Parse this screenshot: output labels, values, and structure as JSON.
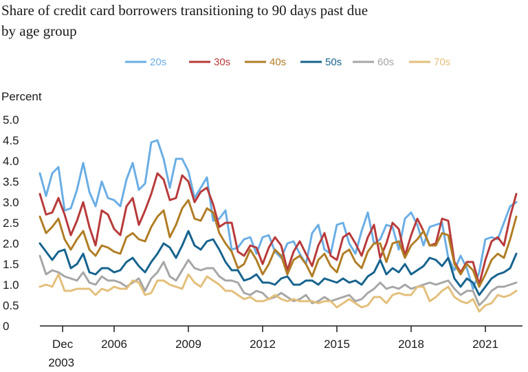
{
  "chart_data": {
    "type": "line",
    "title_line1": "Share of credit card borrowers transitioning to 90 days past due",
    "title_line2": "by age group",
    "ylabel": "Percent",
    "ylim": [
      0,
      5
    ],
    "yticks": [
      "0",
      "0.5",
      "1.0",
      "1.5",
      "2.0",
      "2.5",
      "3.0",
      "3.5",
      "4.0",
      "4.5",
      "5.0"
    ],
    "x_start": 2003.0,
    "x_end": 2022.5,
    "x_step": 0.25,
    "xticks": [
      {
        "x": 2003.92,
        "label": "Dec",
        "label2": "2003"
      },
      {
        "x": 2006.0,
        "label": "2006"
      },
      {
        "x": 2009.0,
        "label": "2009"
      },
      {
        "x": 2012.0,
        "label": "2012"
      },
      {
        "x": 2015.0,
        "label": "2015"
      },
      {
        "x": 2018.0,
        "label": "2018"
      },
      {
        "x": 2021.0,
        "label": "2021"
      }
    ],
    "series": [
      {
        "name": "20s",
        "color": "#6aaee5",
        "values": [
          3.7,
          3.15,
          3.7,
          3.85,
          2.8,
          2.85,
          3.3,
          3.95,
          3.25,
          2.9,
          3.5,
          3.1,
          3.05,
          2.9,
          3.55,
          3.95,
          3.3,
          3.45,
          4.45,
          4.5,
          4.05,
          3.35,
          4.05,
          4.05,
          3.75,
          3.1,
          3.35,
          3.6,
          2.55,
          2.6,
          2.8,
          1.85,
          1.9,
          2.1,
          2.15,
          1.75,
          2.15,
          2.2,
          1.8,
          1.65,
          2.0,
          2.05,
          1.75,
          1.5,
          2.25,
          2.45,
          1.85,
          1.75,
          2.45,
          2.5,
          2.0,
          1.75,
          2.3,
          2.75,
          2.0,
          2.1,
          2.45,
          2.4,
          1.85,
          2.6,
          2.75,
          2.45,
          1.95,
          2.4,
          2.45,
          2.5,
          1.65,
          1.35,
          1.7,
          1.4,
          0.9,
          1.3,
          2.1,
          2.15,
          2.1,
          2.5,
          2.9,
          3.0
        ]
      },
      {
        "name": "30s",
        "color": "#b83a3a",
        "values": [
          3.2,
          2.7,
          2.75,
          3.1,
          2.7,
          2.2,
          2.55,
          3.0,
          2.4,
          1.95,
          2.8,
          2.7,
          2.35,
          2.2,
          2.9,
          3.1,
          2.45,
          2.8,
          3.2,
          3.7,
          3.55,
          3.05,
          3.1,
          3.65,
          3.5,
          3.0,
          3.25,
          3.35,
          2.95,
          2.4,
          2.5,
          2.5,
          1.8,
          1.7,
          1.95,
          1.9,
          1.5,
          1.9,
          2.15,
          1.95,
          1.35,
          1.8,
          2.05,
          1.75,
          1.45,
          1.95,
          2.25,
          1.7,
          1.6,
          2.15,
          2.25,
          2.0,
          1.7,
          2.15,
          2.45,
          1.65,
          2.0,
          2.5,
          2.35,
          1.7,
          2.2,
          2.6,
          2.3,
          1.95,
          2.0,
          2.6,
          2.55,
          1.55,
          1.3,
          1.55,
          1.55,
          1.0,
          1.6,
          2.05,
          2.15,
          1.95,
          2.65,
          3.2
        ]
      },
      {
        "name": "40s",
        "color": "#b07d24",
        "values": [
          2.65,
          2.25,
          2.4,
          2.6,
          2.1,
          1.85,
          2.1,
          2.3,
          1.85,
          1.7,
          1.95,
          1.9,
          1.8,
          1.75,
          2.15,
          2.25,
          2.1,
          2.05,
          2.4,
          2.65,
          2.8,
          2.15,
          2.45,
          2.85,
          3.05,
          2.6,
          2.55,
          2.85,
          2.75,
          2.25,
          2.0,
          1.8,
          1.4,
          1.5,
          1.85,
          1.6,
          1.25,
          1.5,
          1.85,
          1.7,
          1.25,
          1.6,
          1.7,
          1.5,
          1.2,
          1.6,
          1.75,
          1.45,
          1.3,
          1.75,
          1.85,
          1.55,
          1.4,
          1.8,
          2.0,
          2.0,
          1.55,
          2.0,
          2.05,
          1.65,
          1.95,
          2.1,
          2.3,
          1.95,
          1.95,
          2.25,
          2.2,
          1.5,
          1.25,
          1.5,
          1.35,
          0.95,
          1.25,
          1.6,
          1.75,
          1.65,
          2.1,
          2.65
        ]
      },
      {
        "name": "50s",
        "color": "#16638e",
        "values": [
          2.0,
          1.8,
          1.6,
          1.8,
          1.85,
          1.4,
          1.5,
          1.75,
          1.3,
          1.25,
          1.4,
          1.4,
          1.3,
          1.35,
          1.55,
          1.65,
          1.45,
          1.3,
          1.55,
          1.75,
          2.0,
          1.9,
          1.65,
          1.95,
          2.3,
          1.95,
          1.85,
          2.05,
          2.1,
          1.85,
          1.55,
          1.35,
          1.35,
          1.1,
          1.15,
          1.25,
          1.05,
          1.05,
          1.0,
          1.15,
          1.2,
          1.0,
          1.0,
          1.1,
          1.1,
          1.0,
          1.15,
          1.1,
          1.05,
          1.15,
          1.05,
          1.1,
          1.0,
          1.2,
          1.3,
          1.6,
          1.25,
          1.4,
          1.3,
          1.5,
          1.25,
          1.35,
          1.45,
          1.65,
          1.6,
          1.45,
          1.65,
          1.15,
          0.95,
          1.15,
          1.05,
          0.75,
          0.95,
          1.15,
          1.25,
          1.3,
          1.4,
          1.75
        ]
      },
      {
        "name": "60s",
        "color": "#a6a6a6",
        "values": [
          1.7,
          1.25,
          1.35,
          1.3,
          1.2,
          1.15,
          1.1,
          1.3,
          1.05,
          1.0,
          1.2,
          1.1,
          1.1,
          1.05,
          0.95,
          1.05,
          1.15,
          0.85,
          1.15,
          1.3,
          1.55,
          1.2,
          1.1,
          1.35,
          1.6,
          1.4,
          1.35,
          1.4,
          1.4,
          1.2,
          1.1,
          1.1,
          1.05,
          0.8,
          0.75,
          0.85,
          0.8,
          0.65,
          0.7,
          0.8,
          0.7,
          0.6,
          0.65,
          0.75,
          0.55,
          0.6,
          0.7,
          0.6,
          0.65,
          0.7,
          0.75,
          0.6,
          0.65,
          0.8,
          0.9,
          1.05,
          0.9,
          0.95,
          0.9,
          1.0,
          0.9,
          0.95,
          1.0,
          1.05,
          1.0,
          1.05,
          1.1,
          0.9,
          0.75,
          0.85,
          0.85,
          0.5,
          0.65,
          0.85,
          0.95,
          0.95,
          1.0,
          1.05
        ]
      },
      {
        "name": "70s",
        "color": "#e3bf7a",
        "values": [
          0.95,
          1.0,
          0.95,
          1.25,
          0.85,
          0.85,
          0.9,
          0.9,
          0.9,
          0.75,
          0.9,
          0.85,
          0.95,
          0.9,
          0.9,
          1.1,
          1.05,
          0.75,
          0.8,
          1.1,
          1.1,
          1.0,
          0.95,
          0.9,
          1.25,
          1.05,
          0.95,
          1.2,
          1.1,
          1.0,
          0.85,
          0.85,
          0.75,
          0.65,
          0.7,
          0.6,
          0.6,
          0.65,
          0.75,
          0.65,
          0.6,
          0.65,
          0.6,
          0.6,
          0.6,
          0.55,
          0.6,
          0.6,
          0.45,
          0.55,
          0.65,
          0.55,
          0.45,
          0.5,
          0.7,
          0.7,
          0.55,
          0.75,
          0.8,
          0.75,
          0.75,
          0.95,
          0.95,
          0.6,
          0.7,
          0.85,
          0.95,
          0.7,
          0.6,
          0.55,
          0.65,
          0.35,
          0.5,
          0.55,
          0.75,
          0.7,
          0.75,
          0.85
        ]
      }
    ]
  }
}
